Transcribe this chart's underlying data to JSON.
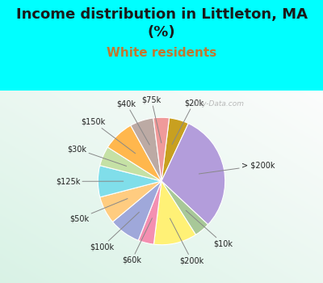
{
  "title": "Income distribution in Littleton, MA\n(%)",
  "subtitle": "White residents",
  "background_top": "#00FFFF",
  "chart_bg_color1": "#e8f8f0",
  "chart_bg_color2": "#f5fffe",
  "labels": [
    "$20k",
    "$75k",
    "$40k",
    "$150k",
    "$30k",
    "$125k",
    "$50k",
    "$100k",
    "$60k",
    "$200k",
    "$10k",
    "> $200k"
  ],
  "values": [
    5,
    4,
    6,
    8,
    5,
    8,
    7,
    8,
    4,
    11,
    4,
    30
  ],
  "colors": [
    "#d4a017",
    "#e8a0a0",
    "#cc8888",
    "#bcaaa4",
    "#ffb74d",
    "#c5e1a5",
    "#80c8e8",
    "#ffcc80",
    "#9fa8da",
    "#f48fb1",
    "#fff176",
    "#a5c8e8",
    "#b39ddb"
  ],
  "pie_colors": [
    "#c8a020",
    "#e88888",
    "#d07070",
    "#b8a090",
    "#ffaa44",
    "#c8e090",
    "#88c8f0",
    "#ffbb60",
    "#9898d0",
    "#f080a0",
    "#f8f060",
    "#88b8e8",
    "#b090d0"
  ],
  "title_fontsize": 13,
  "subtitle_fontsize": 11,
  "subtitle_color": "#c07830",
  "label_fontsize": 7,
  "watermark": "City-Data.com"
}
